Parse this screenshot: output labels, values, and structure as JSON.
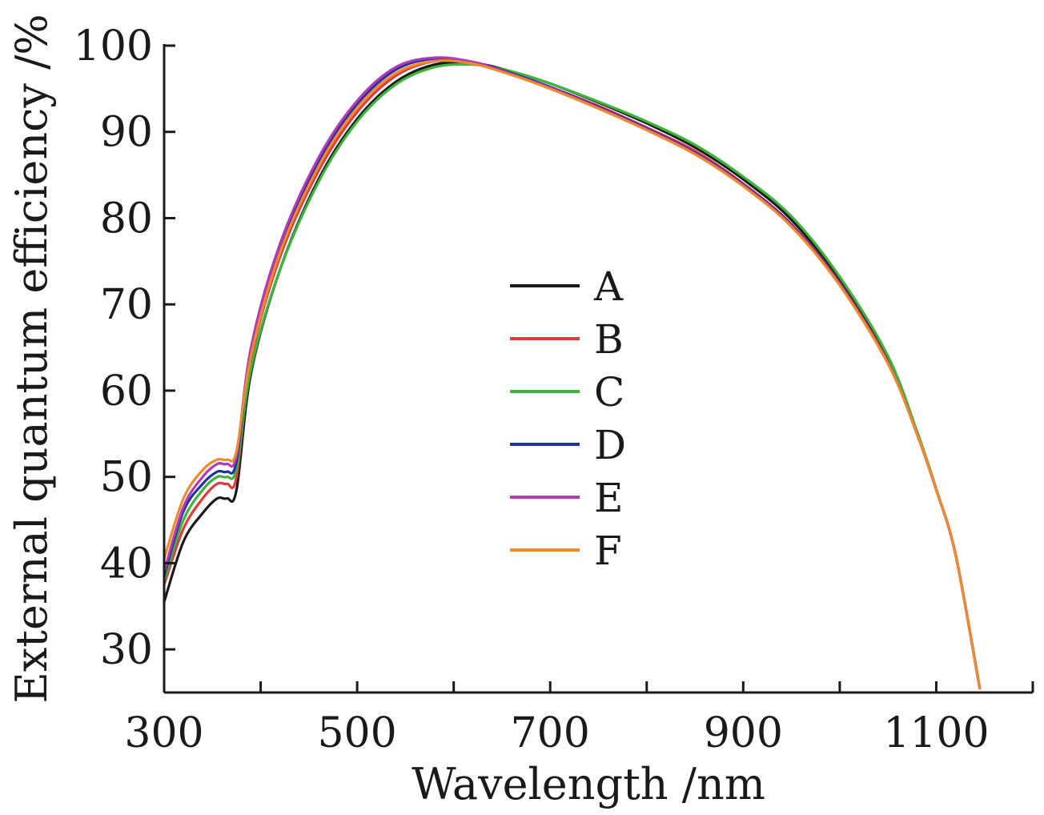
{
  "chart_data": {
    "type": "line",
    "title": "",
    "xlabel": "Wavelength /nm",
    "ylabel": "External quantum efficiency /%",
    "xlim": [
      300,
      1200
    ],
    "ylim": [
      25,
      100
    ],
    "xticks": [
      300,
      500,
      700,
      900,
      1100
    ],
    "yticks": [
      30,
      40,
      50,
      60,
      70,
      80,
      90,
      100
    ],
    "grid": false,
    "legend_position": "center",
    "series": [
      {
        "name": "A",
        "color": "#1a1a1a",
        "x": [
          300,
          320,
          340,
          355,
          365,
          375,
          390,
          420,
          460,
          500,
          540,
          580,
          620,
          660,
          700,
          750,
          800,
          850,
          900,
          950,
          1000,
          1050,
          1080,
          1100,
          1120,
          1145
        ],
        "y": [
          35.5,
          42.5,
          45.8,
          47.5,
          47.5,
          48.5,
          62,
          74,
          84.5,
          91.5,
          95.8,
          97.8,
          98.0,
          97.0,
          95.6,
          93.4,
          91.0,
          88.2,
          84.5,
          79.8,
          72.8,
          63.5,
          55,
          48.5,
          41,
          25.5
        ]
      },
      {
        "name": "B",
        "color": "#e03a3a",
        "x": [
          300,
          320,
          340,
          355,
          365,
          375,
          390,
          420,
          460,
          500,
          540,
          580,
          620,
          660,
          700,
          750,
          800,
          850,
          900,
          950,
          1000,
          1050,
          1080,
          1100,
          1120,
          1145
        ],
        "y": [
          37.5,
          44,
          47.5,
          49.2,
          49.2,
          50,
          63.5,
          75.5,
          85.5,
          92.3,
          96.5,
          98.2,
          98.0,
          96.8,
          95.2,
          93.0,
          90.5,
          87.8,
          84.0,
          79.3,
          72.5,
          63.3,
          55,
          48.5,
          41,
          25.5
        ]
      },
      {
        "name": "C",
        "color": "#3cb53c",
        "x": [
          300,
          320,
          340,
          355,
          365,
          375,
          390,
          420,
          460,
          500,
          540,
          580,
          620,
          660,
          700,
          750,
          800,
          850,
          900,
          950,
          1000,
          1050,
          1080,
          1100,
          1120,
          1145
        ],
        "y": [
          38,
          45,
          48.5,
          50,
          50,
          51,
          62.5,
          74,
          84.2,
          91.2,
          95.5,
          97.5,
          97.8,
          97.0,
          95.6,
          93.5,
          91.2,
          88.5,
          84.8,
          80.2,
          73.2,
          64,
          55.3,
          48.6,
          41,
          25.5
        ]
      },
      {
        "name": "D",
        "color": "#2430a8",
        "x": [
          300,
          320,
          340,
          355,
          365,
          375,
          390,
          420,
          460,
          500,
          540,
          580,
          620,
          660,
          700,
          750,
          800,
          850,
          900,
          950,
          1000,
          1050,
          1080,
          1100,
          1120,
          1145
        ],
        "y": [
          38.5,
          46,
          49.2,
          50.6,
          50.6,
          51.8,
          64.5,
          76.5,
          86.5,
          93.2,
          97.2,
          98.5,
          98.1,
          96.8,
          95.2,
          92.9,
          90.4,
          87.6,
          83.9,
          79.2,
          72.4,
          63.2,
          55,
          48.5,
          41,
          25.5
        ]
      },
      {
        "name": "E",
        "color": "#b23ab2",
        "x": [
          300,
          320,
          340,
          355,
          365,
          375,
          390,
          420,
          460,
          500,
          540,
          580,
          620,
          660,
          700,
          750,
          800,
          850,
          900,
          950,
          1000,
          1050,
          1080,
          1100,
          1120,
          1145
        ],
        "y": [
          39,
          46.5,
          50,
          51.5,
          51.5,
          52.5,
          65,
          77,
          87,
          93.6,
          97.5,
          98.6,
          98.1,
          96.7,
          95.1,
          92.8,
          90.3,
          87.5,
          83.8,
          79.1,
          72.3,
          63.2,
          55,
          48.5,
          41,
          25.5
        ]
      },
      {
        "name": "F",
        "color": "#f08a2c",
        "x": [
          300,
          320,
          340,
          355,
          365,
          375,
          390,
          420,
          460,
          500,
          540,
          580,
          620,
          660,
          700,
          750,
          800,
          850,
          900,
          950,
          1000,
          1050,
          1080,
          1100,
          1120,
          1145
        ],
        "y": [
          40.5,
          47.5,
          50.8,
          52,
          52,
          53,
          64,
          76,
          86,
          92.8,
          96.8,
          98.2,
          97.9,
          96.6,
          95.0,
          92.7,
          90.2,
          87.4,
          83.7,
          79.0,
          72.2,
          63.1,
          55,
          48.5,
          41,
          25.5
        ]
      }
    ]
  }
}
